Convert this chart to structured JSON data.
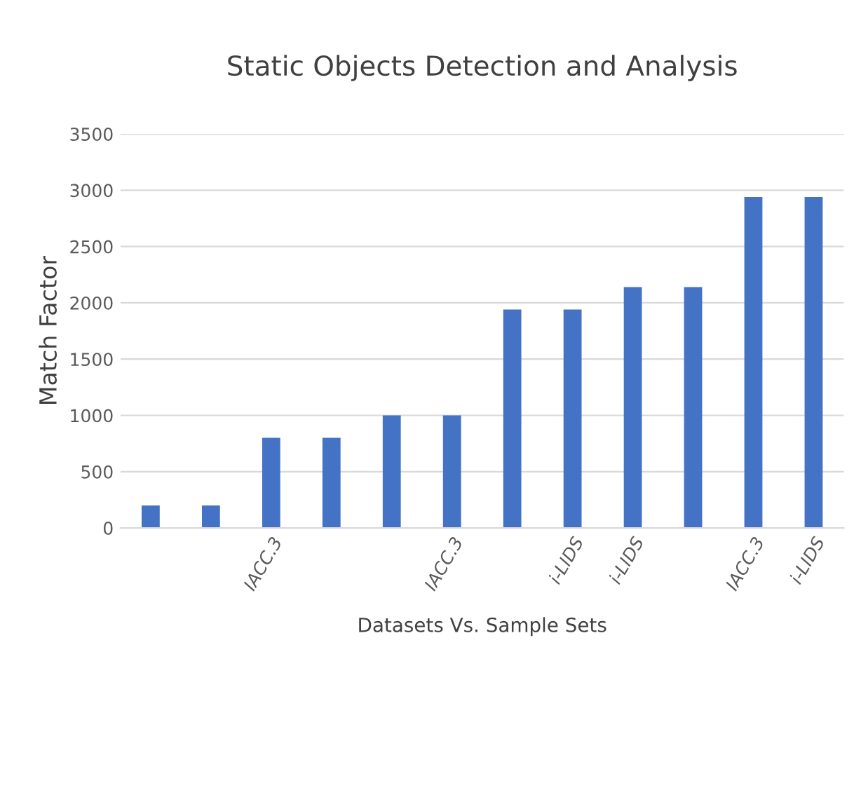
{
  "chart_data": {
    "type": "bar",
    "title": "Static Objects Detection and Analysis",
    "xlabel": "Datasets Vs. Sample Sets",
    "ylabel": "Match Factor",
    "categories": [
      null,
      null,
      "IACC.3",
      null,
      null,
      "IACC.3",
      null,
      "i-LIDS",
      "i-LIDS",
      null,
      "IACC.3",
      "i-LIDS"
    ],
    "values": [
      200,
      200,
      800,
      800,
      1000,
      1000,
      1940,
      1940,
      2140,
      2140,
      2940,
      2940
    ],
    "color": "#4472c4",
    "ylim": [
      0,
      3500
    ],
    "yticks": [
      0,
      500,
      1000,
      1500,
      2000,
      2500,
      3000,
      3500
    ],
    "grid": "y"
  }
}
